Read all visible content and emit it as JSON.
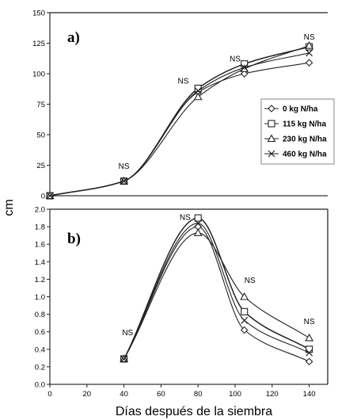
{
  "chart_data": [
    {
      "type": "line",
      "panel_label": "a)",
      "x": [
        0,
        40,
        80,
        105,
        140
      ],
      "xlim": [
        0,
        150
      ],
      "ylim": [
        0,
        150
      ],
      "yticks": [
        "0",
        "25",
        "50",
        "75",
        "100",
        "125",
        "150"
      ],
      "series": [
        {
          "name": "0 kg N/ha",
          "marker": "diamond",
          "values": [
            0,
            12,
            85,
            100,
            109
          ]
        },
        {
          "name": "115 kg N/ha",
          "marker": "square",
          "values": [
            0,
            12,
            88,
            108,
            122
          ]
        },
        {
          "name": "230 kg N/ha",
          "marker": "triangle",
          "values": [
            0,
            12,
            81,
            104,
            123
          ]
        },
        {
          "name": "460  kg N/ha",
          "marker": "x",
          "values": [
            0,
            12,
            86,
            105,
            117
          ]
        }
      ],
      "annotations": [
        {
          "text": "NS",
          "x": 40,
          "y": 22
        },
        {
          "text": "NS",
          "x": 72,
          "y": 92
        },
        {
          "text": "NS",
          "x": 100,
          "y": 110
        },
        {
          "text": "NS",
          "x": 140,
          "y": 128
        }
      ],
      "legend_position": "right"
    },
    {
      "type": "line",
      "panel_label": "b)",
      "x": [
        0,
        40,
        80,
        105,
        140
      ],
      "xlim": [
        0,
        150
      ],
      "ylim": [
        0,
        2.0
      ],
      "xticks": [
        "0",
        "20",
        "40",
        "60",
        "80",
        "100",
        "120",
        "140"
      ],
      "yticks": [
        "0.0",
        "0.2",
        "0.4",
        "0.6",
        "0.8",
        "1.0",
        "1.2",
        "1.4",
        "1.6",
        "1.8",
        "2.0"
      ],
      "series": [
        {
          "name": "0 kg N/ha",
          "marker": "diamond",
          "values": [
            null,
            0.29,
            1.8,
            0.62,
            0.26
          ]
        },
        {
          "name": "115 kg N/ha",
          "marker": "square",
          "values": [
            null,
            0.29,
            1.9,
            0.83,
            0.4
          ]
        },
        {
          "name": "230 kg N/ha",
          "marker": "triangle",
          "values": [
            null,
            0.29,
            1.73,
            1.0,
            0.53
          ]
        },
        {
          "name": "460  kg N/ha",
          "marker": "x",
          "values": [
            null,
            0.29,
            1.84,
            0.73,
            0.36
          ]
        }
      ],
      "annotations": [
        {
          "text": "NS",
          "x": 42,
          "y": 0.56
        },
        {
          "text": "NS",
          "x": 73,
          "y": 1.88
        },
        {
          "text": "NS",
          "x": 108,
          "y": 1.16
        },
        {
          "text": "NS",
          "x": 140,
          "y": 0.69
        }
      ],
      "xlabel": "Días después de la siembra"
    }
  ],
  "ylabel": "cm",
  "colors": {
    "axis": "#000000",
    "line": "#222222",
    "frame": "#444444"
  }
}
